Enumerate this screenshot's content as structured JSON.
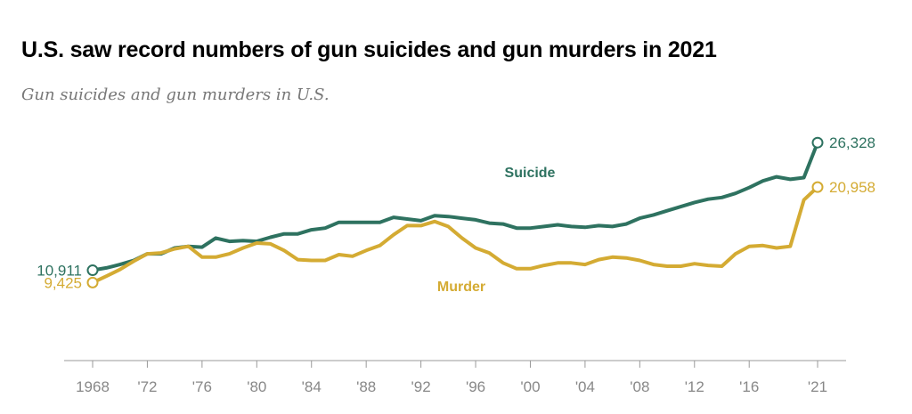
{
  "title": "U.S. saw record numbers of gun suicides and gun murders in 2021",
  "subtitle": "Gun suicides and gun murders in U.S.",
  "colors": {
    "suicide": "#2e7260",
    "murder": "#d4ab33",
    "axis": "#9a9a9a",
    "tick_text": "#888888"
  },
  "chart_data": {
    "type": "line",
    "title": "U.S. saw record numbers of gun suicides and gun murders in 2021",
    "subtitle": "Gun suicides and gun murders in U.S.",
    "xlabel": "",
    "ylabel": "",
    "grid": false,
    "x": [
      1968,
      1969,
      1970,
      1971,
      1972,
      1973,
      1974,
      1975,
      1976,
      1977,
      1978,
      1979,
      1980,
      1981,
      1982,
      1983,
      1984,
      1985,
      1986,
      1987,
      1988,
      1989,
      1990,
      1991,
      1992,
      1993,
      1994,
      1995,
      1996,
      1997,
      1998,
      1999,
      2000,
      2001,
      2002,
      2003,
      2004,
      2005,
      2006,
      2007,
      2008,
      2009,
      2010,
      2011,
      2012,
      2013,
      2014,
      2015,
      2016,
      2017,
      2018,
      2019,
      2020,
      2021
    ],
    "xlim": [
      1966,
      2023
    ],
    "ylim": [
      0,
      28500
    ],
    "x_tick_labels": [
      "1968",
      "'72",
      "'76",
      "'80",
      "'84",
      "'88",
      "'92",
      "'96",
      "'00",
      "'04",
      "'08",
      "'12",
      "'16",
      "'21"
    ],
    "x_tick_values": [
      1968,
      1972,
      1976,
      1980,
      1984,
      1988,
      1992,
      1996,
      2000,
      2004,
      2008,
      2012,
      2016,
      2021
    ],
    "series": [
      {
        "name": "Suicide",
        "values": [
          10911,
          11200,
          11600,
          12100,
          12900,
          12900,
          13600,
          13800,
          13700,
          14800,
          14400,
          14500,
          14400,
          14900,
          15300,
          15300,
          15800,
          16000,
          16700,
          16700,
          16700,
          16700,
          17300,
          17100,
          16900,
          17500,
          17400,
          17200,
          17000,
          16600,
          16500,
          16000,
          16000,
          16200,
          16400,
          16200,
          16100,
          16300,
          16200,
          16500,
          17200,
          17600,
          18100,
          18600,
          19100,
          19500,
          19700,
          20200,
          20900,
          21700,
          22200,
          21900,
          22100,
          26328
        ],
        "start_label": "10,911",
        "end_label": "26,328"
      },
      {
        "name": "Murder",
        "values": [
          9425,
          10200,
          11000,
          12000,
          12900,
          13000,
          13500,
          13800,
          12500,
          12500,
          12900,
          13600,
          14200,
          14100,
          13300,
          12200,
          12100,
          12100,
          12800,
          12600,
          13300,
          13900,
          15200,
          16300,
          16300,
          16800,
          16200,
          14800,
          13600,
          13000,
          11800,
          11100,
          11100,
          11500,
          11800,
          11800,
          11600,
          12200,
          12500,
          12400,
          12100,
          11600,
          11400,
          11400,
          11700,
          11500,
          11400,
          12900,
          13800,
          13900,
          13600,
          13800,
          19400,
          20958
        ],
        "start_label": "9,425",
        "end_label": "20,958"
      }
    ]
  }
}
